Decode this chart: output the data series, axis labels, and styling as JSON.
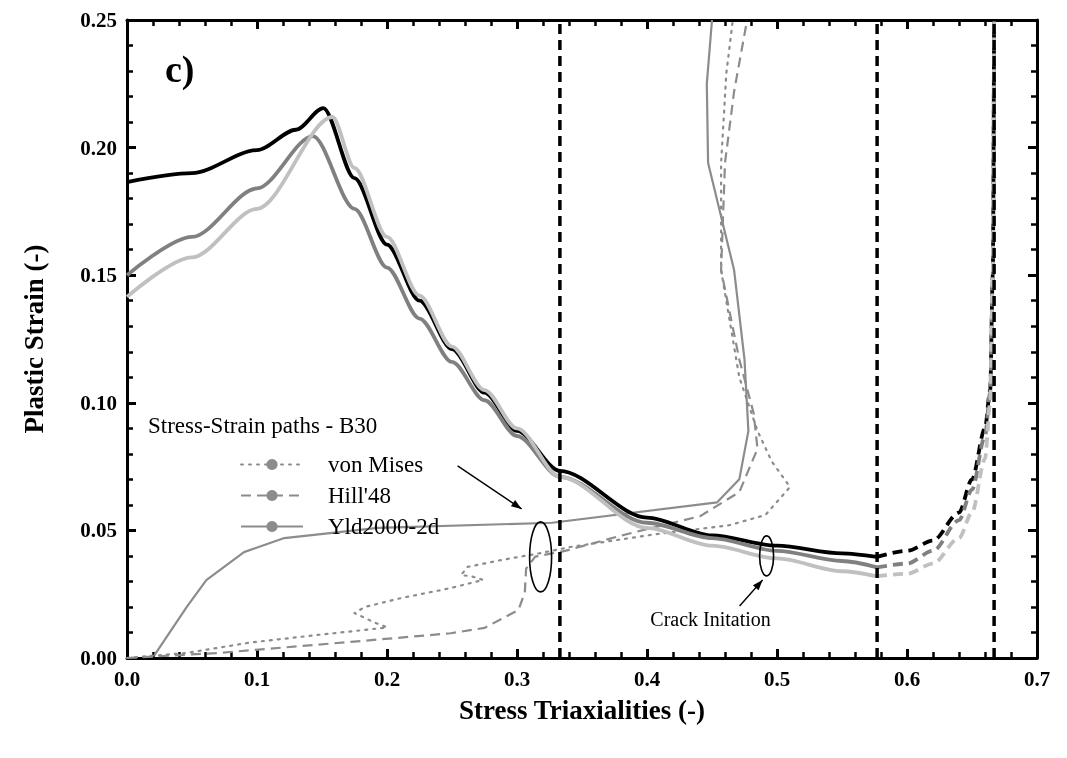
{
  "chart_data": {
    "type": "line",
    "xlabel": "Stress Triaxialities (-)",
    "ylabel": "Plastic Strain (-)",
    "legend_title": "Stress-Strain paths - B30",
    "legend": "left",
    "grid": false,
    "marker": "none",
    "xlim": [
      0,
      0.7
    ],
    "ylim": [
      0,
      0.25
    ],
    "xticks": [
      {
        "value": 0,
        "label": "0.0"
      },
      {
        "value": 0.1,
        "label": "0.1"
      },
      {
        "value": 0.2,
        "label": "0.2"
      },
      {
        "value": 0.3,
        "label": "0.3"
      },
      {
        "value": 0.4,
        "label": "0.4"
      },
      {
        "value": 0.5,
        "label": "0.5"
      },
      {
        "value": 0.6,
        "label": "0.6"
      },
      {
        "value": 0.7,
        "label": "0.7"
      }
    ],
    "yticks": [
      {
        "value": 0,
        "label": "0.00"
      },
      {
        "value": 0.05,
        "label": "0.05"
      },
      {
        "value": 0.1,
        "label": "0.10"
      },
      {
        "value": 0.15,
        "label": "0.15"
      },
      {
        "value": 0.2,
        "label": "0.20"
      },
      {
        "value": 0.25,
        "label": "0.25"
      }
    ],
    "annotations": [
      "c)",
      {
        "text": "Crack Initation",
        "x": 0.492,
        "y": 0.04
      }
    ],
    "ref_lines": [
      {
        "axis": "x",
        "value": 0.333,
        "color": "#000000",
        "line_style": "dashed"
      },
      {
        "axis": "x",
        "value": 0.577,
        "color": "#000000",
        "line_style": "dashed"
      },
      {
        "axis": "x",
        "value": 0.667,
        "color": "#000000",
        "line_style": "dashed"
      }
    ],
    "series": [
      {
        "color": "#000000",
        "line_style": "solid",
        "x": [
          0,
          0.05,
          0.1,
          0.13,
          0.151,
          0.175,
          0.2,
          0.225,
          0.25,
          0.275,
          0.3,
          0.333,
          0.4,
          0.45,
          0.5,
          0.55,
          0.577
        ],
        "values": [
          0.1865,
          0.19,
          0.199,
          0.207,
          0.2155,
          0.188,
          0.162,
          0.14,
          0.121,
          0.104,
          0.089,
          0.0733,
          0.055,
          0.048,
          0.044,
          0.041,
          0.0396
        ]
      },
      {
        "color": "#808080",
        "line_style": "solid",
        "x": [
          0,
          0.05,
          0.1,
          0.143,
          0.175,
          0.2,
          0.225,
          0.25,
          0.275,
          0.3,
          0.333,
          0.4,
          0.45,
          0.5,
          0.55,
          0.577
        ],
        "values": [
          0.15,
          0.165,
          0.184,
          0.2045,
          0.176,
          0.153,
          0.133,
          0.116,
          0.101,
          0.087,
          0.071,
          0.053,
          0.047,
          0.042,
          0.038,
          0.0355
        ]
      },
      {
        "color": "#c0c0c0",
        "line_style": "solid",
        "x": [
          0,
          0.05,
          0.1,
          0.158,
          0.175,
          0.2,
          0.225,
          0.25,
          0.275,
          0.3,
          0.333,
          0.4,
          0.45,
          0.5,
          0.55,
          0.577
        ],
        "values": [
          0.1415,
          0.157,
          0.176,
          0.212,
          0.192,
          0.165,
          0.142,
          0.122,
          0.105,
          0.09,
          0.071,
          0.051,
          0.044,
          0.039,
          0.034,
          0.032
        ]
      },
      {
        "color": "#000000",
        "line_style": "dashed",
        "x": [
          0.577,
          0.6,
          0.62,
          0.64,
          0.65,
          0.66,
          0.664,
          0.666,
          0.667
        ],
        "values": [
          0.0396,
          0.042,
          0.046,
          0.057,
          0.07,
          0.09,
          0.105,
          0.15,
          0.25
        ]
      },
      {
        "color": "#808080",
        "line_style": "dashed",
        "x": [
          0.577,
          0.6,
          0.62,
          0.64,
          0.65,
          0.66,
          0.664,
          0.666,
          0.667
        ],
        "values": [
          0.0355,
          0.037,
          0.042,
          0.054,
          0.066,
          0.087,
          0.104,
          0.15,
          0.25
        ]
      },
      {
        "color": "#c0c0c0",
        "line_style": "dashed",
        "x": [
          0.577,
          0.6,
          0.62,
          0.64,
          0.65,
          0.66,
          0.664,
          0.666,
          0.667
        ],
        "values": [
          0.032,
          0.033,
          0.037,
          0.047,
          0.057,
          0.078,
          0.1,
          0.15,
          0.25
        ]
      },
      {
        "name": "von Mises",
        "color": "#8c8c8c",
        "line_style": "dotted",
        "x": [
          0,
          0.046,
          0.094,
          0.146,
          0.183,
          0.2,
          0.19,
          0.183,
          0.175,
          0.183,
          0.211,
          0.249,
          0.274,
          0.265,
          0.257,
          0.262,
          0.288,
          0.317,
          0.341,
          0.408,
          0.463,
          0.491,
          0.51,
          0.496,
          0.485,
          0.471,
          0.457,
          0.457,
          0.461,
          0.466
        ],
        "values": [
          0,
          0.002,
          0.006,
          0.009,
          0.011,
          0.012,
          0.014,
          0.0157,
          0.0176,
          0.02,
          0.0235,
          0.0274,
          0.0306,
          0.032,
          0.0325,
          0.0357,
          0.0384,
          0.041,
          0.0435,
          0.0486,
          0.052,
          0.056,
          0.067,
          0.077,
          0.089,
          0.11,
          0.152,
          0.194,
          0.229,
          0.25
        ]
      },
      {
        "name": "Hill'48",
        "color": "#8c8c8c",
        "line_style": "dashed",
        "x": [
          0,
          0.071,
          0.172,
          0.249,
          0.275,
          0.301,
          0.306,
          0.307,
          0.314,
          0.337,
          0.385,
          0.441,
          0.471,
          0.485,
          0.482,
          0.471,
          0.457,
          0.46,
          0.467,
          0.477
        ],
        "values": [
          0,
          0.002,
          0.0063,
          0.0097,
          0.0118,
          0.0188,
          0.0255,
          0.035,
          0.0397,
          0.042,
          0.0486,
          0.0556,
          0.065,
          0.082,
          0.096,
          0.117,
          0.152,
          0.194,
          0.222,
          0.25
        ]
      },
      {
        "name": "Yld2000-2d",
        "color": "#8c8c8c",
        "line_style": "solid",
        "x": [
          0.021,
          0.046,
          0.061,
          0.09,
          0.121,
          0.193,
          0.327,
          0.454,
          0.471,
          0.478,
          0.475,
          0.467,
          0.447,
          0.446,
          0.45
        ],
        "values": [
          0.001,
          0.02,
          0.0305,
          0.0415,
          0.047,
          0.051,
          0.053,
          0.061,
          0.07,
          0.089,
          0.117,
          0.152,
          0.194,
          0.225,
          0.25
        ]
      }
    ]
  }
}
